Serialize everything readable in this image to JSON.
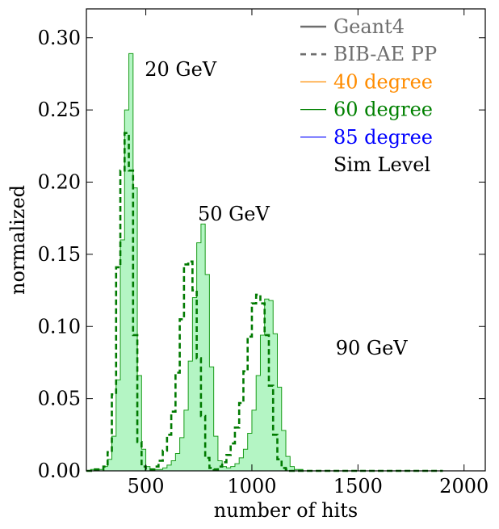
{
  "chart_data": {
    "type": "histogram",
    "xlabel": "number of hits",
    "ylabel": "normalized",
    "xlim": [
      220,
      2100
    ],
    "ylim": [
      0,
      0.32
    ],
    "xticks": [
      500,
      1000,
      1500,
      2000
    ],
    "xtick_labels": [
      "500",
      "1000",
      "1500",
      "2000"
    ],
    "yticks": [
      0.0,
      0.05,
      0.1,
      0.15,
      0.2,
      0.25,
      0.3
    ],
    "ytick_labels": [
      "0.00",
      "0.05",
      "0.10",
      "0.15",
      "0.20",
      "0.25",
      "0.30"
    ],
    "bin_width": 20,
    "x_start": 220,
    "series": [
      {
        "name": "Geant4",
        "style": "filled-step",
        "color": "#1a9c1a",
        "fill": "#b4f5c4",
        "values": [
          0.0,
          0.001,
          0.0,
          0.001,
          0.003,
          0.008,
          0.024,
          0.063,
          0.16,
          0.25,
          0.289,
          0.196,
          0.066,
          0.015,
          0.003,
          0.001,
          0.001,
          0.001,
          0.002,
          0.004,
          0.007,
          0.012,
          0.023,
          0.042,
          0.076,
          0.12,
          0.158,
          0.171,
          0.136,
          0.072,
          0.024,
          0.007,
          0.003,
          0.002,
          0.003,
          0.005,
          0.009,
          0.015,
          0.026,
          0.042,
          0.066,
          0.094,
          0.119,
          0.118,
          0.095,
          0.058,
          0.028,
          0.01,
          0.003,
          0.001,
          0.001,
          0.0,
          0.0,
          0.0,
          0.0,
          0.0,
          0.0,
          0.0,
          0.0,
          0.0,
          0.0,
          0.0,
          0.0,
          0.0,
          0.0,
          0.0,
          0.0,
          0.0,
          0.0,
          0.0,
          0.0,
          0.0,
          0.0,
          0.0,
          0.0,
          0.0,
          0.0,
          0.0,
          0.0,
          0.0,
          0.0,
          0.0,
          0.0,
          0.0
        ]
      },
      {
        "name": "BIB-AE PP",
        "style": "dashed-step",
        "color": "#007a00",
        "values": [
          0.0,
          0.0,
          0.001,
          0.001,
          0.003,
          0.013,
          0.053,
          0.141,
          0.208,
          0.234,
          0.208,
          0.094,
          0.02,
          0.003,
          0.001,
          0.001,
          0.003,
          0.007,
          0.014,
          0.025,
          0.041,
          0.068,
          0.105,
          0.143,
          0.145,
          0.125,
          0.078,
          0.038,
          0.009,
          0.002,
          0.001,
          0.003,
          0.006,
          0.011,
          0.019,
          0.03,
          0.047,
          0.069,
          0.093,
          0.116,
          0.122,
          0.116,
          0.094,
          0.059,
          0.025,
          0.008,
          0.002,
          0.001,
          0.0,
          0.0,
          0.0,
          0.0,
          0.0,
          0.0,
          0.0,
          0.0,
          0.0,
          0.0,
          0.0,
          0.0,
          0.0,
          0.0,
          0.0,
          0.0,
          0.0,
          0.0,
          0.0,
          0.0,
          0.0,
          0.0,
          0.0,
          0.0,
          0.0,
          0.0,
          0.0,
          0.0,
          0.0,
          0.0,
          0.0,
          0.0,
          0.0,
          0.0,
          0.0,
          0.0
        ]
      }
    ],
    "annotations": [
      {
        "text": "20 GeV",
        "x": 495,
        "y": 0.278
      },
      {
        "text": "50 GeV",
        "x": 745,
        "y": 0.178
      },
      {
        "text": "90 GeV",
        "x": 1395,
        "y": 0.085
      }
    ],
    "legend": {
      "position": "top-right",
      "entries": [
        {
          "label": "Geant4",
          "line": "solid",
          "color": "#6e6e6e"
        },
        {
          "label": "BIB-AE PP",
          "line": "dashed",
          "color": "#6e6e6e"
        },
        {
          "label": "40 degree",
          "line": "solid",
          "color": "#ff8c00"
        },
        {
          "label": "60 degree",
          "line": "solid",
          "color": "#008000"
        },
        {
          "label": "85 degree",
          "line": "solid",
          "color": "#0000ff"
        },
        {
          "label": "Sim Level",
          "line": "none",
          "color": "#000000"
        }
      ]
    }
  }
}
